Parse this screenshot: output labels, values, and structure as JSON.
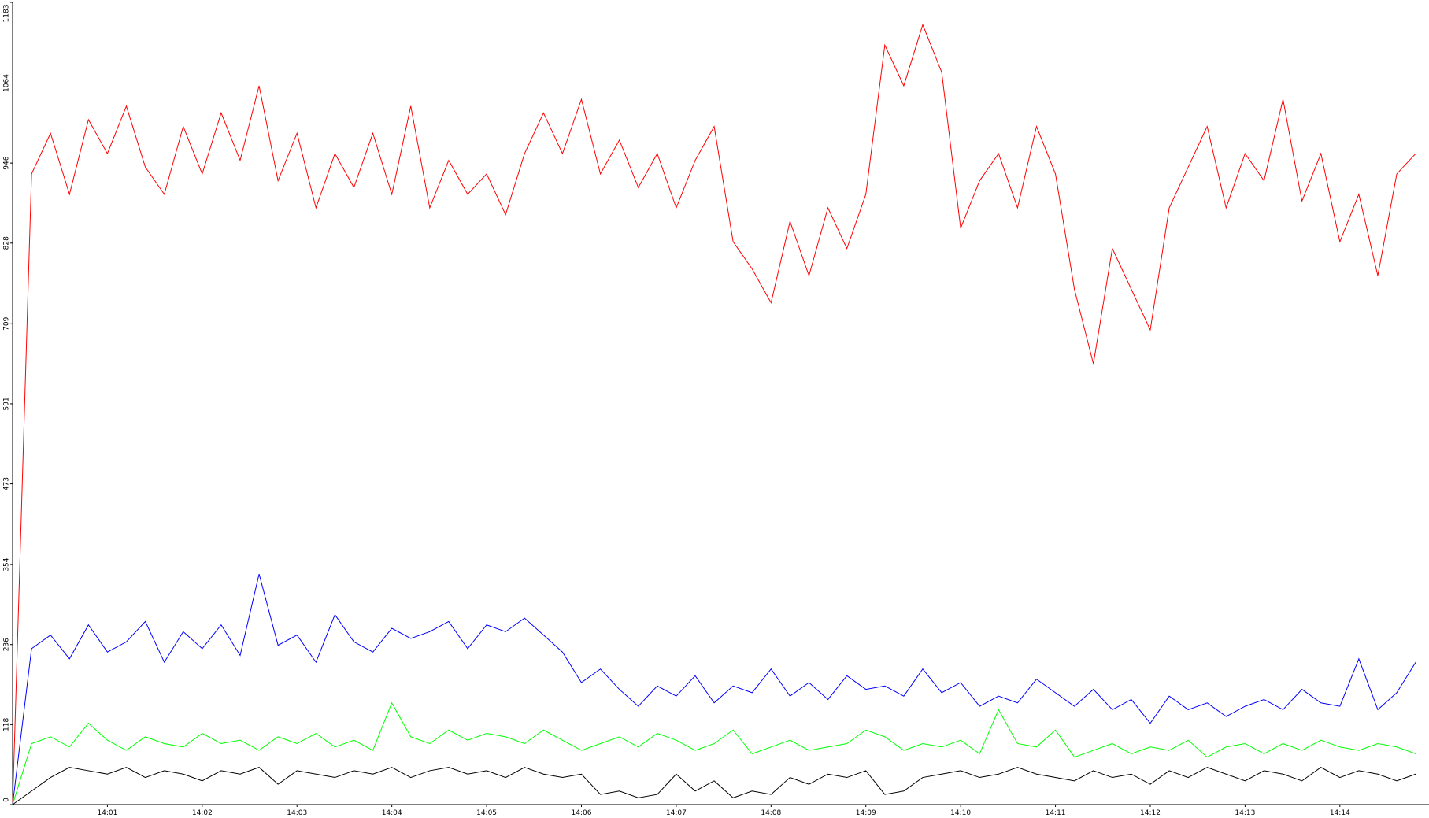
{
  "chart_data": {
    "type": "line",
    "x": [
      0,
      0.2,
      0.4,
      0.6,
      0.8,
      1,
      1.2,
      1.4,
      1.6,
      1.8,
      2,
      2.2,
      2.4,
      2.6,
      2.8,
      3,
      3.2,
      3.4,
      3.6,
      3.8,
      4,
      4.2,
      4.4,
      4.6,
      4.8,
      5,
      5.2,
      5.4,
      5.6,
      5.8,
      6,
      6.2,
      6.4,
      6.6,
      6.8,
      7,
      7.2,
      7.4,
      7.6,
      7.8,
      8,
      8.2,
      8.4,
      8.6,
      8.8,
      9,
      9.2,
      9.4,
      9.6,
      9.8,
      10,
      10.2,
      10.4,
      10.6,
      10.8,
      11,
      11.2,
      11.4,
      11.6,
      11.8,
      12,
      12.2,
      12.4,
      12.6,
      12.8,
      13,
      13.2,
      13.4,
      13.6,
      13.8,
      14,
      14.2,
      14.4,
      14.6,
      14.8
    ],
    "series": [
      {
        "color": "#ff0000",
        "values": [
          0,
          930,
          990,
          900,
          1010,
          960,
          1030,
          940,
          900,
          1000,
          930,
          1020,
          950,
          1060,
          920,
          990,
          880,
          960,
          910,
          990,
          900,
          1030,
          880,
          950,
          900,
          930,
          870,
          960,
          1020,
          960,
          1040,
          930,
          980,
          910,
          960,
          880,
          950,
          1000,
          830,
          790,
          740,
          860,
          780,
          880,
          820,
          900,
          1120,
          1060,
          1150,
          1080,
          850,
          920,
          960,
          880,
          1000,
          930,
          760,
          650,
          820,
          760,
          700,
          880,
          940,
          1000,
          880,
          960,
          920,
          1040,
          890,
          960,
          830,
          900,
          780,
          930,
          960
        ]
      },
      {
        "color": "#0000ff",
        "values": [
          0,
          230,
          250,
          215,
          265,
          225,
          240,
          270,
          210,
          255,
          230,
          265,
          220,
          340,
          235,
          250,
          210,
          280,
          240,
          225,
          260,
          245,
          255,
          270,
          230,
          265,
          255,
          275,
          250,
          225,
          180,
          200,
          170,
          145,
          175,
          160,
          190,
          150,
          175,
          165,
          200,
          160,
          180,
          155,
          190,
          170,
          175,
          160,
          200,
          165,
          180,
          145,
          160,
          150,
          185,
          165,
          145,
          170,
          140,
          155,
          120,
          160,
          140,
          150,
          130,
          145,
          155,
          140,
          170,
          150,
          145,
          215,
          140,
          165,
          210
        ]
      },
      {
        "color": "#00ff00",
        "values": [
          0,
          90,
          100,
          85,
          120,
          95,
          80,
          100,
          90,
          85,
          105,
          90,
          95,
          80,
          100,
          90,
          105,
          85,
          95,
          80,
          150,
          100,
          90,
          110,
          95,
          105,
          100,
          90,
          110,
          95,
          80,
          90,
          100,
          85,
          105,
          95,
          80,
          90,
          110,
          75,
          85,
          95,
          80,
          85,
          90,
          110,
          100,
          80,
          90,
          85,
          95,
          75,
          140,
          90,
          85,
          110,
          70,
          80,
          90,
          75,
          85,
          80,
          95,
          70,
          85,
          90,
          75,
          90,
          80,
          95,
          85,
          80,
          90,
          85,
          75
        ]
      },
      {
        "color": "#000000",
        "values": [
          0,
          20,
          40,
          55,
          50,
          45,
          55,
          40,
          50,
          45,
          35,
          50,
          45,
          55,
          30,
          50,
          45,
          40,
          50,
          45,
          55,
          40,
          50,
          55,
          45,
          50,
          40,
          55,
          45,
          40,
          45,
          15,
          20,
          10,
          15,
          45,
          20,
          35,
          10,
          20,
          15,
          40,
          30,
          45,
          40,
          50,
          15,
          20,
          40,
          45,
          50,
          40,
          45,
          55,
          45,
          40,
          35,
          50,
          40,
          45,
          30,
          50,
          40,
          55,
          45,
          35,
          50,
          45,
          35,
          55,
          40,
          50,
          45,
          35,
          45
        ]
      }
    ],
    "xlim": [
      0,
      14.94
    ],
    "xticks": [
      {
        "value": 1,
        "label": "14:01"
      },
      {
        "value": 2,
        "label": "14:02"
      },
      {
        "value": 3,
        "label": "14:03"
      },
      {
        "value": 4,
        "label": "14:04"
      },
      {
        "value": 5,
        "label": "14:05"
      },
      {
        "value": 6,
        "label": "14:06"
      },
      {
        "value": 7,
        "label": "14:07"
      },
      {
        "value": 8,
        "label": "14:08"
      },
      {
        "value": 9,
        "label": "14:09"
      },
      {
        "value": 10,
        "label": "14:10"
      },
      {
        "value": 11,
        "label": "14:11"
      },
      {
        "value": 12,
        "label": "14:12"
      },
      {
        "value": 13,
        "label": "14:13"
      },
      {
        "value": 14,
        "label": "14:14"
      }
    ],
    "ylim": [
      0,
      1183
    ],
    "yticks": [
      0,
      118,
      236,
      354,
      473,
      591,
      709,
      828,
      946,
      1064,
      1183
    ]
  }
}
